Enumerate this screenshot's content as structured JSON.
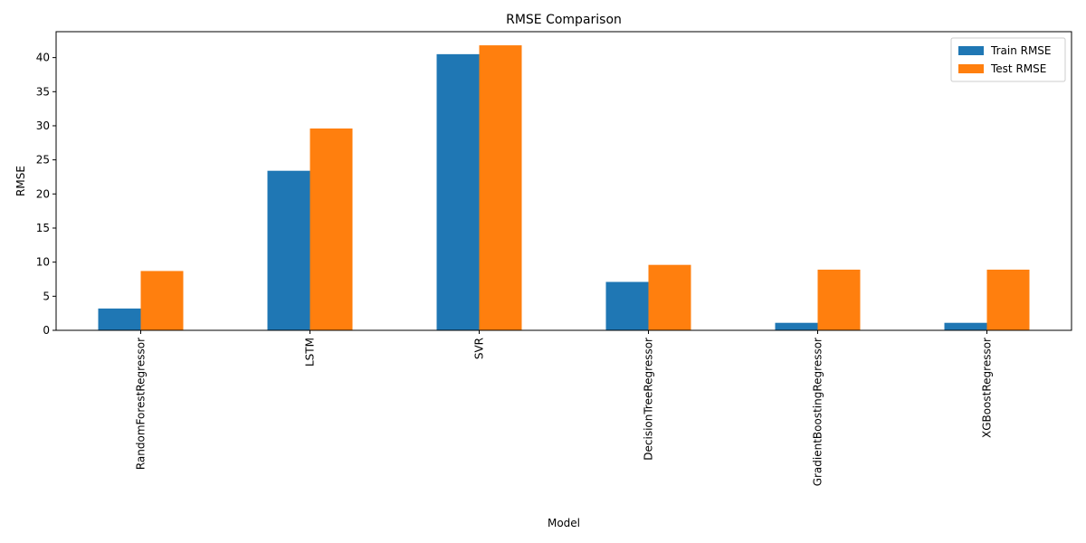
{
  "chart_data": {
    "type": "bar",
    "title": "RMSE Comparison",
    "xlabel": "Model",
    "ylabel": "RMSE",
    "categories": [
      "RandomForestRegressor",
      "LSTM",
      "SVR",
      "DecisionTreeRegressor",
      "GradientBoostingRegressor",
      "XGBoostRegressor"
    ],
    "series": [
      {
        "name": "Train RMSE",
        "color": "#1f77b4",
        "values": [
          3.2,
          23.4,
          40.5,
          7.1,
          1.1,
          1.1
        ]
      },
      {
        "name": "Test RMSE",
        "color": "#ff7f0e",
        "values": [
          8.7,
          29.6,
          41.8,
          9.6,
          8.9,
          8.9
        ]
      }
    ],
    "ylim": [
      0,
      43.8
    ],
    "yticks": [
      0,
      5,
      10,
      15,
      20,
      25,
      30,
      35,
      40
    ],
    "legend": "top-right",
    "grid": false
  }
}
